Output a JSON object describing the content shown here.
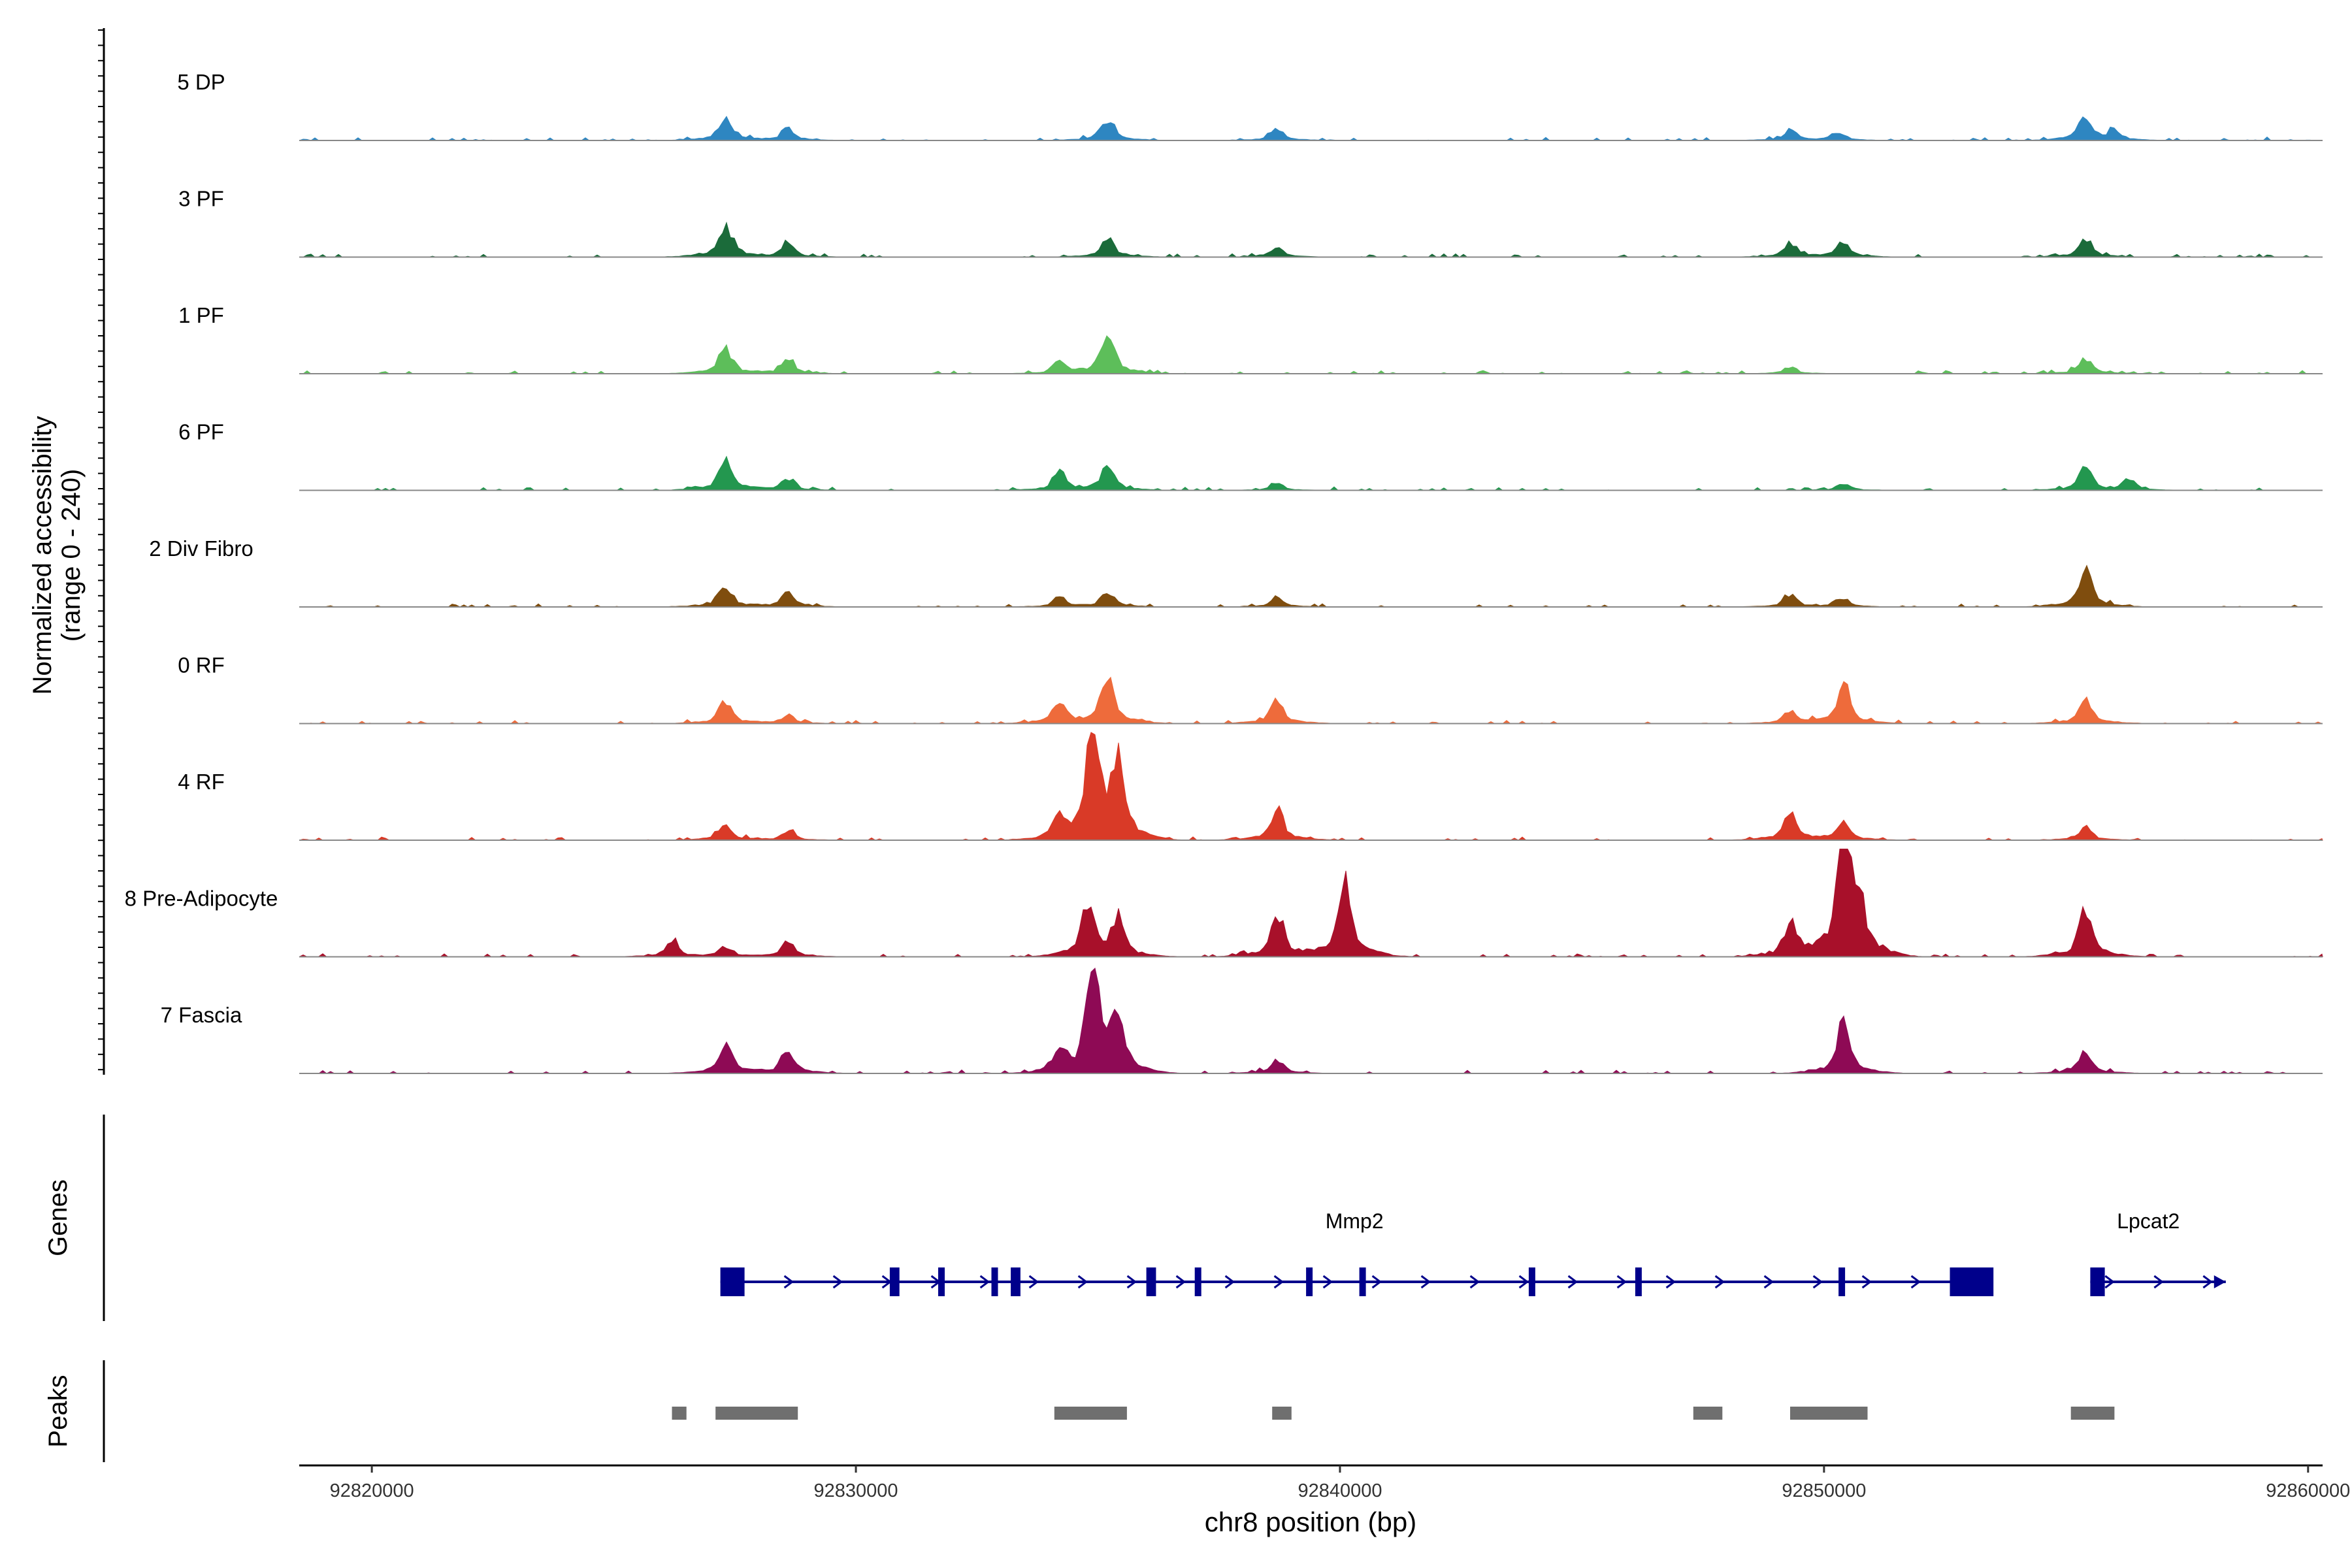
{
  "chart_data": {
    "type": "area",
    "title": "",
    "ylabel_line1": "Normalized accessibility",
    "ylabel_line2": "(range 0 - 240)",
    "yrange": [
      0,
      240
    ],
    "xlabel": "chr8 position (bp)",
    "xlim": [
      92818500,
      92860300
    ],
    "x_ticks": [
      92820000,
      92830000,
      92840000,
      92850000,
      92860000
    ],
    "x_tick_labels": [
      "92820000",
      "92830000",
      "92840000",
      "92850000",
      "92860000"
    ],
    "panel_labels": {
      "genes": "Genes",
      "peaks": "Peaks"
    },
    "series": [
      {
        "name": "5 DP",
        "color": "#2E86C1",
        "peaks": [
          [
            92827300,
            28
          ],
          [
            92828600,
            14
          ],
          [
            92835200,
            24
          ],
          [
            92838700,
            14
          ],
          [
            92849300,
            12
          ],
          [
            92850300,
            10
          ],
          [
            92855400,
            30
          ],
          [
            92856000,
            10
          ]
        ]
      },
      {
        "name": "3 PF",
        "color": "#1B6B3A",
        "peaks": [
          [
            92827300,
            38
          ],
          [
            92828600,
            16
          ],
          [
            92835200,
            22
          ],
          [
            92838700,
            12
          ],
          [
            92849300,
            16
          ],
          [
            92850400,
            18
          ],
          [
            92855400,
            22
          ]
        ]
      },
      {
        "name": "1 PF",
        "color": "#5DBE5A",
        "peaks": [
          [
            92827300,
            30
          ],
          [
            92828600,
            16
          ],
          [
            92835200,
            50
          ],
          [
            92834200,
            14
          ],
          [
            92849300,
            8
          ],
          [
            92855400,
            18
          ]
        ]
      },
      {
        "name": "6 PF",
        "color": "#23974F",
        "peaks": [
          [
            92827300,
            40
          ],
          [
            92828600,
            14
          ],
          [
            92835200,
            28
          ],
          [
            92834200,
            22
          ],
          [
            92838700,
            8
          ],
          [
            92850400,
            8
          ],
          [
            92855400,
            26
          ],
          [
            92856300,
            12
          ]
        ]
      },
      {
        "name": "2 Div Fibro",
        "color": "#7F4D0E",
        "peaks": [
          [
            92827300,
            26
          ],
          [
            92828600,
            18
          ],
          [
            92835200,
            18
          ],
          [
            92834200,
            10
          ],
          [
            92838700,
            12
          ],
          [
            92849300,
            14
          ],
          [
            92850400,
            10
          ],
          [
            92855400,
            44
          ]
        ]
      },
      {
        "name": "0 RF",
        "color": "#EE6B3B",
        "peaks": [
          [
            92827300,
            26
          ],
          [
            92828600,
            10
          ],
          [
            92835200,
            56
          ],
          [
            92834200,
            28
          ],
          [
            92838700,
            28
          ],
          [
            92849300,
            14
          ],
          [
            92850400,
            44
          ],
          [
            92855400,
            30
          ]
        ]
      },
      {
        "name": "4 RF",
        "color": "#D93A27",
        "peaks": [
          [
            92827300,
            20
          ],
          [
            92828600,
            10
          ],
          [
            92834900,
            138
          ],
          [
            92835400,
            84
          ],
          [
            92834200,
            22
          ],
          [
            92838700,
            36
          ],
          [
            92849300,
            36
          ],
          [
            92850400,
            24
          ],
          [
            92855400,
            14
          ]
        ]
      },
      {
        "name": "8 Pre-Adipocyte",
        "color": "#A8102A",
        "peaks": [
          [
            92826200,
            18
          ],
          [
            92827300,
            12
          ],
          [
            92828600,
            18
          ],
          [
            92834800,
            62
          ],
          [
            92835400,
            44
          ],
          [
            92838700,
            52
          ],
          [
            92840100,
            98
          ],
          [
            92849300,
            38
          ],
          [
            92850400,
            158
          ],
          [
            92850700,
            60
          ],
          [
            92855400,
            54
          ]
        ]
      },
      {
        "name": "7 Fascia",
        "color": "#8E0A55",
        "peaks": [
          [
            92827300,
            36
          ],
          [
            92828600,
            28
          ],
          [
            92834900,
            124
          ],
          [
            92835400,
            62
          ],
          [
            92834200,
            24
          ],
          [
            92838700,
            16
          ],
          [
            92850400,
            58
          ],
          [
            92855400,
            26
          ]
        ]
      }
    ],
    "genes": [
      {
        "name": "Mmp2",
        "label_x": 92840300,
        "start": 92827200,
        "end": 92853200,
        "exons": [
          [
            92827200,
            92827700
          ],
          [
            92830700,
            92830900
          ],
          [
            92831700,
            92831800
          ],
          [
            92832800,
            92832900
          ],
          [
            92833200,
            92833400
          ],
          [
            92836000,
            92836200
          ],
          [
            92837000,
            92837100
          ],
          [
            92839300,
            92839400
          ],
          [
            92840400,
            92840500
          ],
          [
            92843900,
            92844000
          ],
          [
            92846100,
            92846200
          ],
          [
            92850300,
            92850400
          ],
          [
            92852600,
            92853500
          ]
        ]
      },
      {
        "name": "Lpcat2",
        "label_x": 92856700,
        "start": 92855500,
        "end": 92858300,
        "exons": [
          [
            92855500,
            92855800
          ]
        ]
      }
    ],
    "peak_regions": [
      [
        92826200,
        92826500
      ],
      [
        92827100,
        92828800
      ],
      [
        92834100,
        92835600
      ],
      [
        92838600,
        92839000
      ],
      [
        92847300,
        92847900
      ],
      [
        92849300,
        92850900
      ],
      [
        92855100,
        92856000
      ]
    ]
  }
}
